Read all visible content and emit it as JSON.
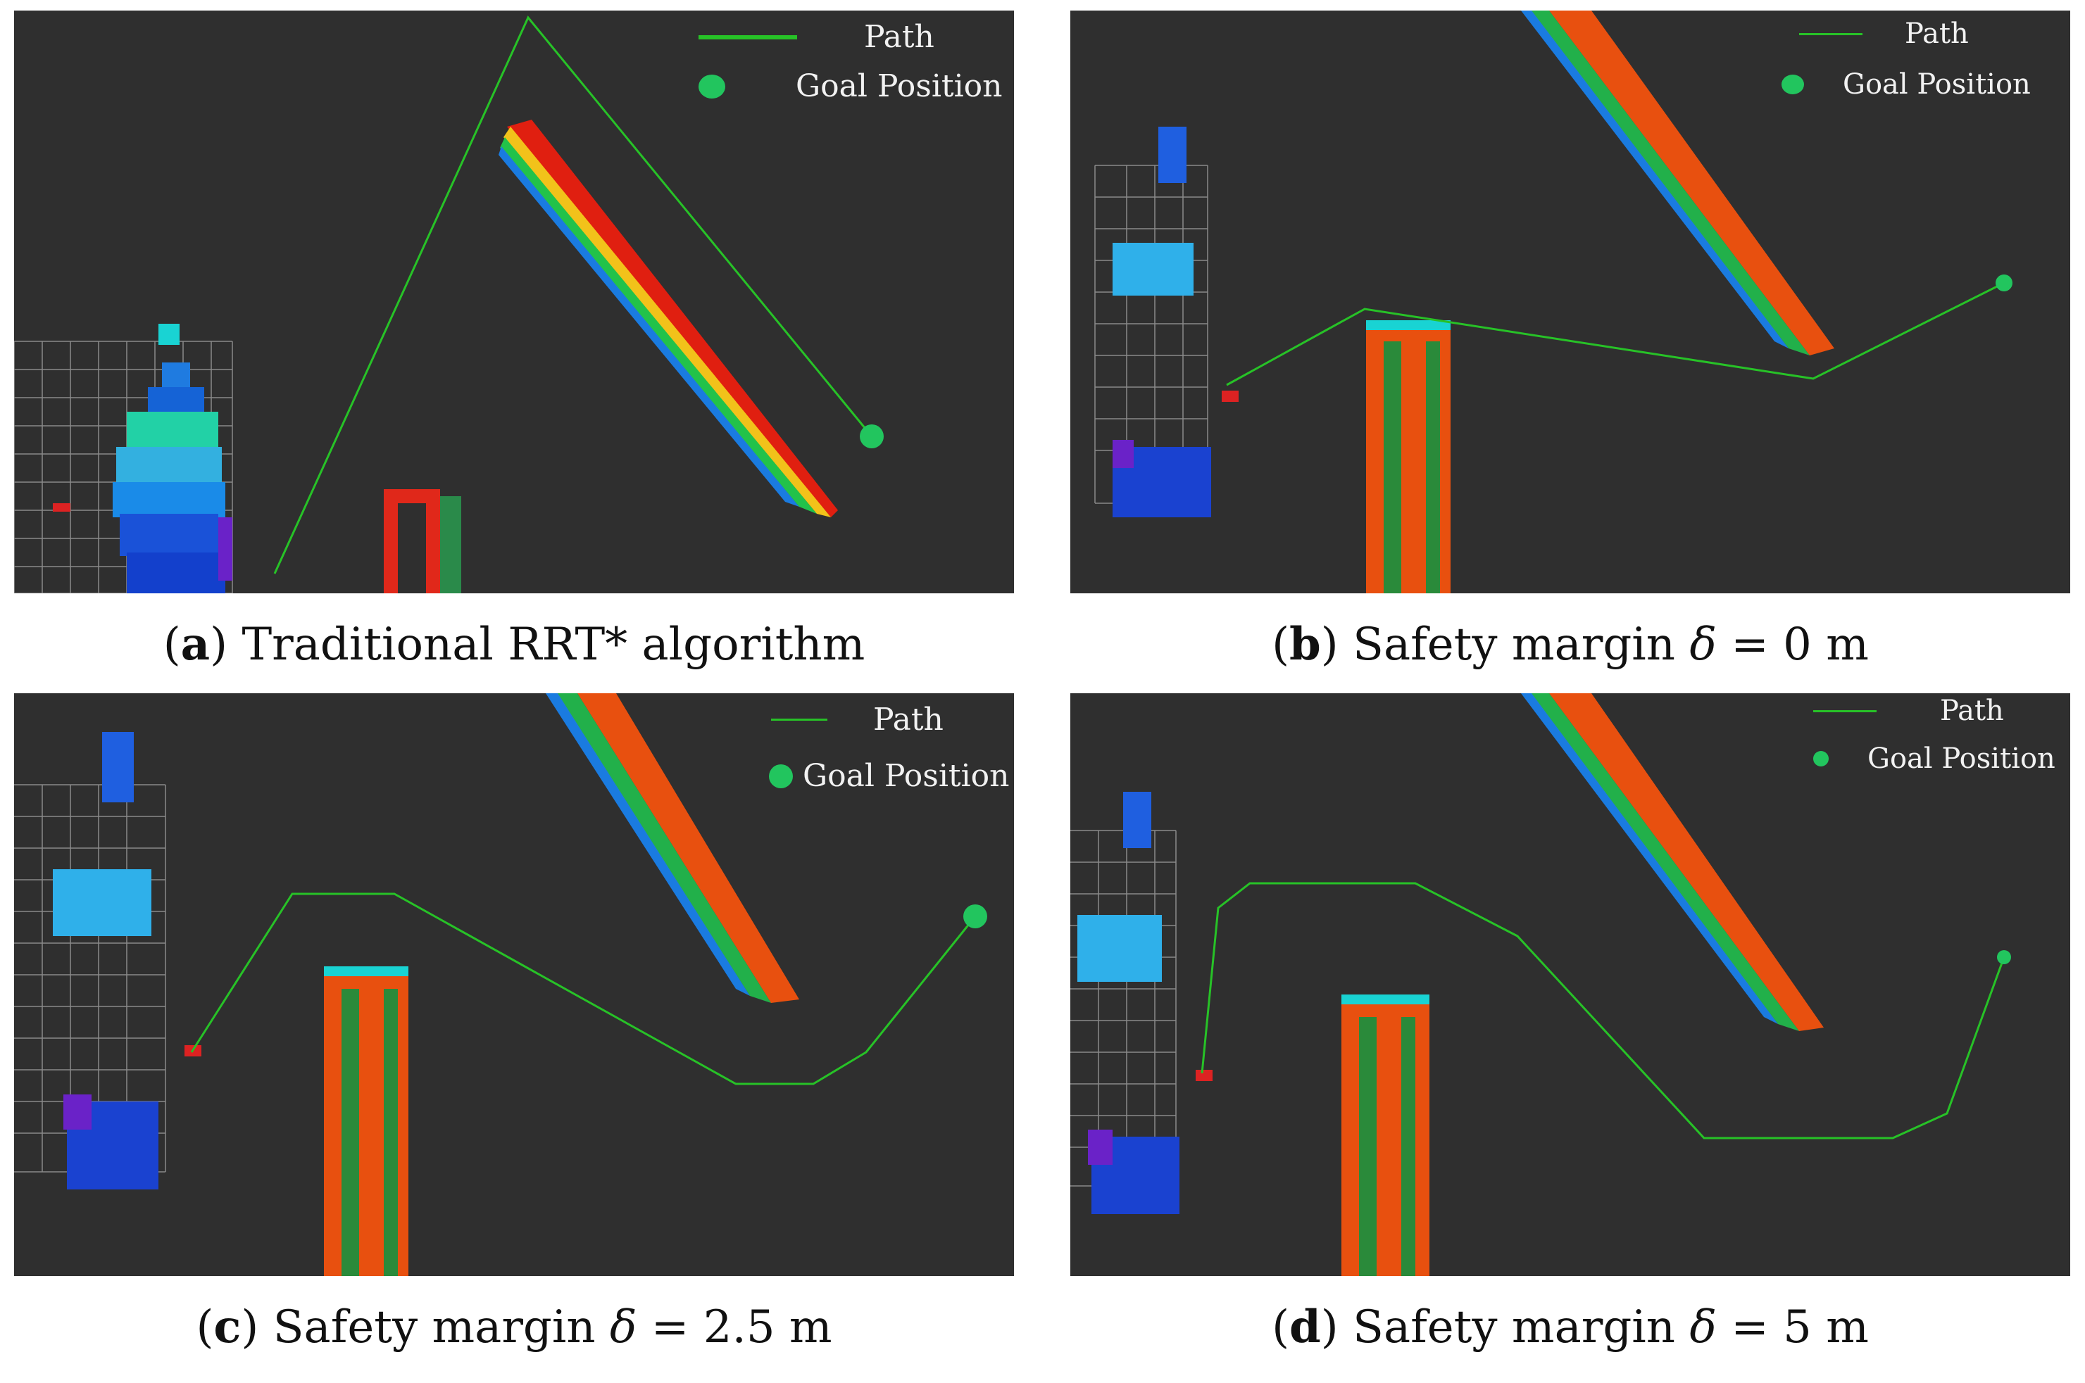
{
  "panels": [
    {
      "id": "a",
      "letter": "a",
      "caption": "Traditional RRT* algorithm",
      "legend": {
        "path_label": "Path",
        "goal_label": "Goal Position"
      },
      "colors": {
        "background": "#2f2f2f",
        "path": "#27c227",
        "goal": "#22c55e"
      }
    },
    {
      "id": "b",
      "letter": "b",
      "caption_prefix": "Safety margin ",
      "symbol": "δ",
      "caption_suffix": " = 0 m",
      "legend": {
        "path_label": "Path",
        "goal_label": "Goal Position"
      }
    },
    {
      "id": "c",
      "letter": "c",
      "caption_prefix": "Safety margin ",
      "symbol": "δ",
      "caption_suffix": " = 2.5 m",
      "legend": {
        "path_label": "Path",
        "goal_label": "Goal Position"
      }
    },
    {
      "id": "d",
      "letter": "d",
      "caption_prefix": "Safety margin ",
      "symbol": "δ",
      "caption_suffix": " = 5 m",
      "legend": {
        "path_label": "Path",
        "goal_label": "Goal Position"
      }
    }
  ]
}
